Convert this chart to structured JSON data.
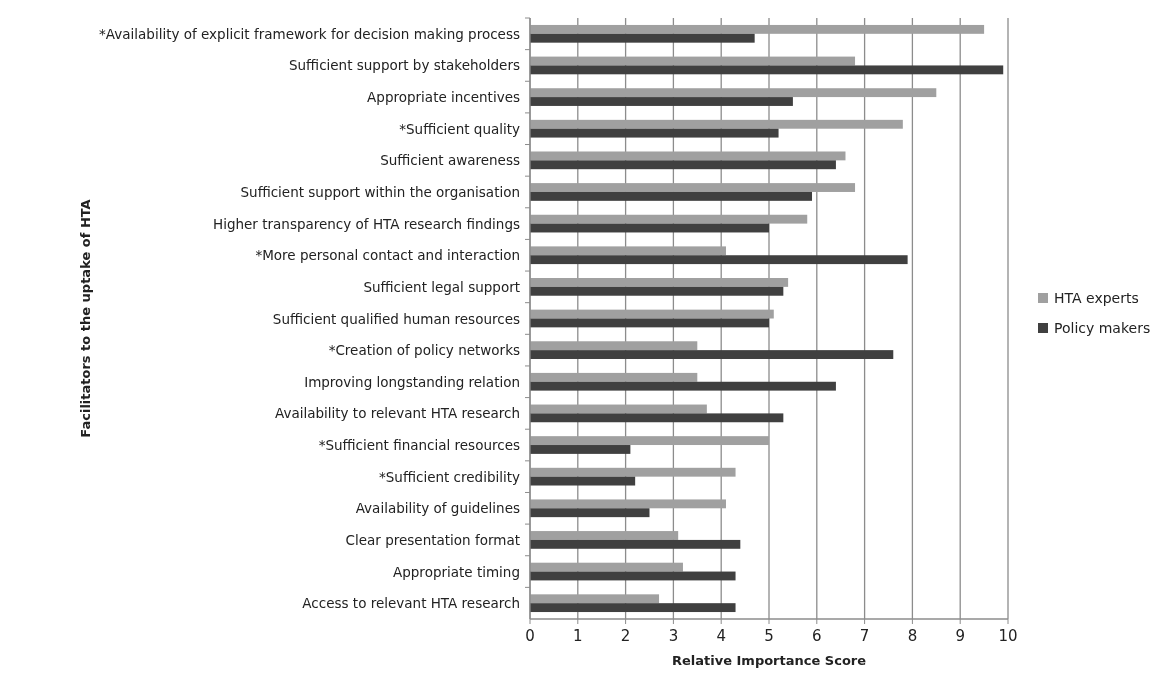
{
  "chart_data": {
    "type": "bar",
    "orientation": "horizontal",
    "xlabel": "Relative Importance Score",
    "ylabel": "Facilitators to the uptake of HTA",
    "categories": [
      "*Availability of explicit framework for decision making process",
      "Sufficient support by stakeholders",
      "Appropriate incentives",
      "*Sufficient quality",
      "Sufficient awareness",
      "Sufficient support within the organisation",
      "Higher transparency of HTA research findings",
      "*More personal contact and interaction",
      "Sufficient legal support",
      "Sufficient qualified human resources",
      "*Creation of policy networks",
      "Improving longstanding relation",
      "Availability to relevant HTA research",
      "*Sufficient financial resources",
      "*Sufficient credibility",
      "Availability of guidelines",
      "Clear presentation format",
      "Appropriate timing",
      "Access to relevant HTA research"
    ],
    "series": [
      {
        "name": "HTA experts",
        "color": "#a0a0a0",
        "values": [
          9.5,
          6.8,
          8.5,
          7.8,
          6.6,
          6.8,
          5.8,
          4.1,
          5.4,
          5.1,
          3.5,
          3.5,
          3.7,
          5.0,
          4.3,
          4.1,
          3.1,
          3.2,
          2.7
        ]
      },
      {
        "name": "Policy makers",
        "color": "#404040",
        "values": [
          4.7,
          9.9,
          5.5,
          5.2,
          6.4,
          5.9,
          5.0,
          7.9,
          5.3,
          5.0,
          7.6,
          6.4,
          5.3,
          2.1,
          2.2,
          2.5,
          4.4,
          4.3,
          4.3
        ]
      }
    ],
    "xlim": [
      0,
      10
    ],
    "xticks": [
      0,
      1,
      2,
      3,
      4,
      5,
      6,
      7,
      8,
      9,
      10
    ],
    "grid": "x",
    "legend": "right"
  }
}
